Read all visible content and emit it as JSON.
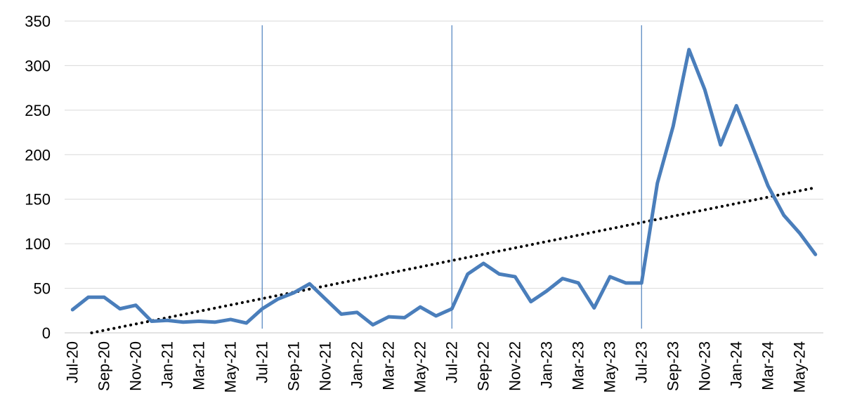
{
  "chart_data": {
    "type": "line",
    "title": "",
    "xlabel": "",
    "ylabel": "",
    "ylim": [
      0,
      350
    ],
    "yticks": [
      0,
      50,
      100,
      150,
      200,
      250,
      300,
      350
    ],
    "grid": true,
    "legend": "none",
    "x": [
      "Jul-20",
      "Aug-20",
      "Sep-20",
      "Oct-20",
      "Nov-20",
      "Dec-20",
      "Jan-21",
      "Feb-21",
      "Mar-21",
      "Apr-21",
      "May-21",
      "Jun-21",
      "Jul-21",
      "Aug-21",
      "Sep-21",
      "Oct-21",
      "Nov-21",
      "Dec-21",
      "Jan-22",
      "Feb-22",
      "Mar-22",
      "Apr-22",
      "May-22",
      "Jun-22",
      "Jul-22",
      "Aug-22",
      "Sep-22",
      "Oct-22",
      "Nov-22",
      "Dec-22",
      "Jan-23",
      "Feb-23",
      "Mar-23",
      "Apr-23",
      "May-23",
      "Jun-23",
      "Jul-23",
      "Aug-23",
      "Sep-23",
      "Oct-23",
      "Nov-23",
      "Dec-23",
      "Jan-24",
      "Feb-24",
      "Mar-24",
      "Apr-24",
      "May-24",
      "Jun-24"
    ],
    "x_tick_labels": [
      "Jul-20",
      "Sep-20",
      "Nov-20",
      "Jan-21",
      "Mar-21",
      "May-21",
      "Jul-21",
      "Sep-21",
      "Nov-21",
      "Jan-22",
      "Mar-22",
      "May-22",
      "Jul-22",
      "Sep-22",
      "Nov-22",
      "Jan-23",
      "Mar-23",
      "May-23",
      "Jul-23",
      "Sep-23",
      "Nov-23",
      "Jan-24",
      "Mar-24",
      "May-24"
    ],
    "series": [
      {
        "color": "#4a7ebb",
        "values": [
          26,
          40,
          40,
          27,
          31,
          13,
          14,
          12,
          13,
          12,
          15,
          11,
          27,
          38,
          45,
          55,
          38,
          21,
          23,
          9,
          18,
          17,
          29,
          19,
          27,
          66,
          78,
          66,
          63,
          35,
          47,
          61,
          56,
          28,
          63,
          56,
          56,
          168,
          232,
          318,
          273,
          211,
          255,
          210,
          165,
          132,
          112,
          88
        ]
      }
    ],
    "trendline": {
      "type": "linear",
      "style": "dotted",
      "color": "#000000",
      "start_value": -4.3,
      "slope_per_month": 3.56
    },
    "vertical_markers": [
      "Jul-21",
      "Jul-22",
      "Jul-23"
    ],
    "marker_color": "#4e81bd"
  }
}
